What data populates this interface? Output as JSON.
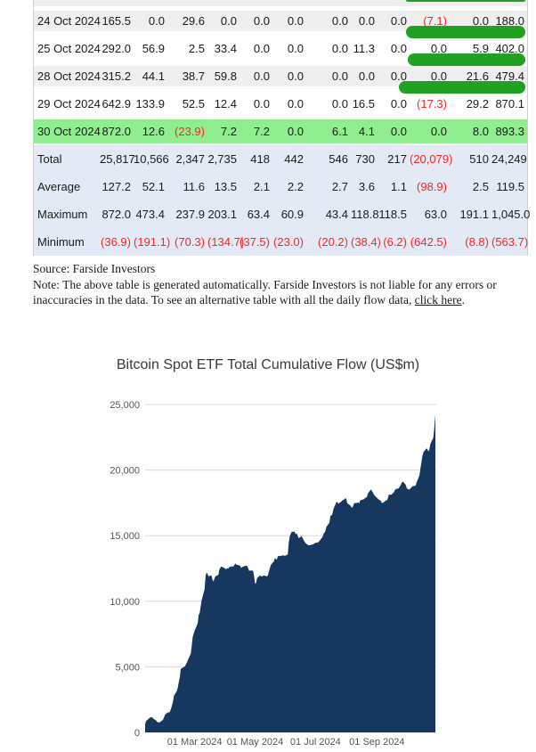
{
  "colors": {
    "stripe_bg": "#efefef",
    "highlight_green": "#90ee90",
    "summary_bg": "#e3eaf6",
    "bar_green": "#21a121",
    "negative_red": "#f92525",
    "area_navy": "#17375e",
    "grid_gray": "#d9d9d9"
  },
  "table": {
    "rows": [
      {
        "date": "24 Oct 2024",
        "shade": "gray",
        "bar": true,
        "values": [
          "165.5",
          "0.0",
          "29.6",
          "0.0",
          "0.0",
          "0.0",
          "0.0",
          "0.0",
          "0.0",
          "(7.1)",
          "0.0",
          "188.0"
        ]
      },
      {
        "date": "25 Oct 2024",
        "shade": "white",
        "bar": true,
        "values": [
          "292.0",
          "56.9",
          "2.5",
          "33.4",
          "0.0",
          "0.0",
          "0.0",
          "11.3",
          "0.0",
          "0.0",
          "5.9",
          "402.0"
        ]
      },
      {
        "date": "28 Oct 2024",
        "shade": "gray",
        "bar": true,
        "values": [
          "315.2",
          "44.1",
          "38.7",
          "59.8",
          "0.0",
          "0.0",
          "0.0",
          "0.0",
          "0.0",
          "0.0",
          "21.6",
          "479.4"
        ]
      },
      {
        "date": "29 Oct 2024",
        "shade": "white",
        "bar": false,
        "values": [
          "642.9",
          "133.9",
          "52.5",
          "12.4",
          "0.0",
          "0.0",
          "0.0",
          "16.5",
          "0.0",
          "(17.3)",
          "29.2",
          "870.1"
        ]
      },
      {
        "date": "30 Oct 2024",
        "shade": "green",
        "bar": false,
        "values": [
          "872.0",
          "12.6",
          "(23.9)",
          "7.2",
          "7.2",
          "0.0",
          "6.1",
          "4.1",
          "0.0",
          "0.0",
          "8.0",
          "893.3"
        ]
      }
    ],
    "summary": [
      {
        "label": "Total",
        "values": [
          "25,817",
          "10,566",
          "2,347",
          "2,735",
          "418",
          "442",
          "546",
          "730",
          "217",
          "(20,079)",
          "510",
          "24,249"
        ]
      },
      {
        "label": "Average",
        "values": [
          "127.2",
          "52.1",
          "11.6",
          "13.5",
          "2.1",
          "2.2",
          "2.7",
          "3.6",
          "1.1",
          "(98.9)",
          "2.5",
          "119.5"
        ]
      },
      {
        "label": "Maximum",
        "values": [
          "872.0",
          "473.4",
          "237.9",
          "203.1",
          "63.4",
          "60.9",
          "43.4",
          "118.8",
          "118.5",
          "63.0",
          "191.1",
          "1,045.0"
        ]
      },
      {
        "label": "Minimum",
        "values": [
          "(36.9)",
          "(191.1)",
          "(70.3)",
          "(134.7)",
          "(37.5)",
          "(23.0)",
          "(20.2)",
          "(38.4)",
          "(6.2)",
          "(642.5)",
          "(8.8)",
          "(563.7)"
        ]
      }
    ]
  },
  "notes": {
    "source": "Source: Farside Investors",
    "note_before_link": "Note: The above table is generated automatically. Farside Investors is not liable for any errors or inaccuracies in the data. To see an alternative table with all the daily flow data, ",
    "link_text": "click here",
    "note_after_link": "."
  },
  "chart_data": {
    "type": "area",
    "title": "Bitcoin Spot ETF Total Cumulative Flow (US$m)",
    "xlabel": "",
    "ylabel": "",
    "ylim": [
      0,
      25000
    ],
    "x_range": [
      "2024-01-11",
      "2024-10-30"
    ],
    "grid": true,
    "legend": "none",
    "yticks": [
      {
        "value": 0,
        "label": "0"
      },
      {
        "value": 5000,
        "label": "5,000"
      },
      {
        "value": 10000,
        "label": "10,000"
      },
      {
        "value": 15000,
        "label": "15,000"
      },
      {
        "value": 20000,
        "label": "20,000"
      },
      {
        "value": 25000,
        "label": "25,000"
      }
    ],
    "xticks": [
      {
        "date": "2024-03-01",
        "label": "01 Mar 2024"
      },
      {
        "date": "2024-05-01",
        "label": "01 May 2024"
      },
      {
        "date": "2024-07-01",
        "label": "01 Jul 2024"
      },
      {
        "date": "2024-09-01",
        "label": "01 Sep 2024"
      }
    ],
    "series_name": "cumulative_flow_usd_m",
    "points": [
      [
        "2024-01-11",
        630
      ],
      [
        "2024-01-12",
        860
      ],
      [
        "2024-01-16",
        1150
      ],
      [
        "2024-01-17",
        1140
      ],
      [
        "2024-01-18",
        1170
      ],
      [
        "2024-01-19",
        1060
      ],
      [
        "2024-01-22",
        920
      ],
      [
        "2024-01-23",
        800
      ],
      [
        "2024-01-24",
        780
      ],
      [
        "2024-01-25",
        745
      ],
      [
        "2024-01-26",
        790
      ],
      [
        "2024-01-29",
        950
      ],
      [
        "2024-01-30",
        1120
      ],
      [
        "2024-01-31",
        1350
      ],
      [
        "2024-02-01",
        1410
      ],
      [
        "2024-02-02",
        1490
      ],
      [
        "2024-02-05",
        1560
      ],
      [
        "2024-02-06",
        1770
      ],
      [
        "2024-02-07",
        2010
      ],
      [
        "2024-02-08",
        2310
      ],
      [
        "2024-02-09",
        2770
      ],
      [
        "2024-02-12",
        3180
      ],
      [
        "2024-02-13",
        3420
      ],
      [
        "2024-02-14",
        3830
      ],
      [
        "2024-02-15",
        4190
      ],
      [
        "2024-02-16",
        4850
      ],
      [
        "2024-02-20",
        5030
      ],
      [
        "2024-02-21",
        5140
      ],
      [
        "2024-02-22",
        5290
      ],
      [
        "2024-02-23",
        5480
      ],
      [
        "2024-02-26",
        6000
      ],
      [
        "2024-02-27",
        6580
      ],
      [
        "2024-02-28",
        7260
      ],
      [
        "2024-02-29",
        7530
      ],
      [
        "2024-03-01",
        7760
      ],
      [
        "2024-03-04",
        8310
      ],
      [
        "2024-03-05",
        8960
      ],
      [
        "2024-03-06",
        9080
      ],
      [
        "2024-03-07",
        9560
      ],
      [
        "2024-03-08",
        10060
      ],
      [
        "2024-03-11",
        10920
      ],
      [
        "2024-03-12",
        11940
      ],
      [
        "2024-03-13",
        12180
      ],
      [
        "2024-03-14",
        12080
      ],
      [
        "2024-03-15",
        11900
      ],
      [
        "2024-03-18",
        11970
      ],
      [
        "2024-03-19",
        11640
      ],
      [
        "2024-03-20",
        11510
      ],
      [
        "2024-03-21",
        11750
      ],
      [
        "2024-03-22",
        11900
      ],
      [
        "2024-03-25",
        12010
      ],
      [
        "2024-03-26",
        12430
      ],
      [
        "2024-03-27",
        12560
      ],
      [
        "2024-03-28",
        12650
      ],
      [
        "2024-04-01",
        12480
      ],
      [
        "2024-04-02",
        12440
      ],
      [
        "2024-04-03",
        12530
      ],
      [
        "2024-04-04",
        12500
      ],
      [
        "2024-04-05",
        12610
      ],
      [
        "2024-04-08",
        12670
      ],
      [
        "2024-04-09",
        12630
      ],
      [
        "2024-04-10",
        12760
      ],
      [
        "2024-04-11",
        12890
      ],
      [
        "2024-04-12",
        12800
      ],
      [
        "2024-04-15",
        12740
      ],
      [
        "2024-04-16",
        12700
      ],
      [
        "2024-04-17",
        12550
      ],
      [
        "2024-04-18",
        12590
      ],
      [
        "2024-04-19",
        12650
      ],
      [
        "2024-04-22",
        12710
      ],
      [
        "2024-04-23",
        12680
      ],
      [
        "2024-04-24",
        12520
      ],
      [
        "2024-04-25",
        12310
      ],
      [
        "2024-04-26",
        12350
      ],
      [
        "2024-04-29",
        12330
      ],
      [
        "2024-04-30",
        11900
      ],
      [
        "2024-05-01",
        11340
      ],
      [
        "2024-05-02",
        11380
      ],
      [
        "2024-05-03",
        11760
      ],
      [
        "2024-05-06",
        11980
      ],
      [
        "2024-05-07",
        11900
      ],
      [
        "2024-05-08",
        11910
      ],
      [
        "2024-05-09",
        11930
      ],
      [
        "2024-05-10",
        11960
      ],
      [
        "2024-05-13",
        11890
      ],
      [
        "2024-05-14",
        11990
      ],
      [
        "2024-05-15",
        12290
      ],
      [
        "2024-05-16",
        12550
      ],
      [
        "2024-05-17",
        12790
      ],
      [
        "2024-05-20",
        13030
      ],
      [
        "2024-05-21",
        13320
      ],
      [
        "2024-05-22",
        13200
      ],
      [
        "2024-05-23",
        13180
      ],
      [
        "2024-05-24",
        13430
      ],
      [
        "2024-05-28",
        13470
      ],
      [
        "2024-05-29",
        13510
      ],
      [
        "2024-05-30",
        13480
      ],
      [
        "2024-05-31",
        13460
      ],
      [
        "2024-06-03",
        13560
      ],
      [
        "2024-06-04",
        14440
      ],
      [
        "2024-06-05",
        14940
      ],
      [
        "2024-06-06",
        15160
      ],
      [
        "2024-06-07",
        15290
      ],
      [
        "2024-06-10",
        15300
      ],
      [
        "2024-06-11",
        15100
      ],
      [
        "2024-06-12",
        15200
      ],
      [
        "2024-06-13",
        15000
      ],
      [
        "2024-06-14",
        14810
      ],
      [
        "2024-06-17",
        14960
      ],
      [
        "2024-06-18",
        14810
      ],
      [
        "2024-06-19",
        14670
      ],
      [
        "2024-06-20",
        14530
      ],
      [
        "2024-06-21",
        14430
      ],
      [
        "2024-06-24",
        14260
      ],
      [
        "2024-06-25",
        14290
      ],
      [
        "2024-06-26",
        14270
      ],
      [
        "2024-06-27",
        14330
      ],
      [
        "2024-06-28",
        14320
      ],
      [
        "2024-07-01",
        14450
      ],
      [
        "2024-07-02",
        14480
      ],
      [
        "2024-07-03",
        14460
      ],
      [
        "2024-07-05",
        14600
      ],
      [
        "2024-07-08",
        14900
      ],
      [
        "2024-07-09",
        15120
      ],
      [
        "2024-07-10",
        15240
      ],
      [
        "2024-07-11",
        15360
      ],
      [
        "2024-07-12",
        15670
      ],
      [
        "2024-07-15",
        15970
      ],
      [
        "2024-07-16",
        16500
      ],
      [
        "2024-07-17",
        16550
      ],
      [
        "2024-07-18",
        16630
      ],
      [
        "2024-07-19",
        17010
      ],
      [
        "2024-07-22",
        17550
      ],
      [
        "2024-07-23",
        17580
      ],
      [
        "2024-07-24",
        17430
      ],
      [
        "2024-07-25",
        17490
      ],
      [
        "2024-07-26",
        17540
      ],
      [
        "2024-07-29",
        17730
      ],
      [
        "2024-07-30",
        17760
      ],
      [
        "2024-07-31",
        17860
      ],
      [
        "2024-08-01",
        17810
      ],
      [
        "2024-08-02",
        17470
      ],
      [
        "2024-08-05",
        17300
      ],
      [
        "2024-08-06",
        17200
      ],
      [
        "2024-08-07",
        17110
      ],
      [
        "2024-08-08",
        17290
      ],
      [
        "2024-08-09",
        17470
      ],
      [
        "2024-08-12",
        17500
      ],
      [
        "2024-08-13",
        17540
      ],
      [
        "2024-08-14",
        17450
      ],
      [
        "2024-08-15",
        17680
      ],
      [
        "2024-08-16",
        17720
      ],
      [
        "2024-08-19",
        17780
      ],
      [
        "2024-08-20",
        17870
      ],
      [
        "2024-08-21",
        17910
      ],
      [
        "2024-08-22",
        17970
      ],
      [
        "2024-08-23",
        18230
      ],
      [
        "2024-08-26",
        18530
      ],
      [
        "2024-08-27",
        18400
      ],
      [
        "2024-08-28",
        18290
      ],
      [
        "2024-08-29",
        18120
      ],
      [
        "2024-08-30",
        18030
      ],
      [
        "2024-09-03",
        17740
      ],
      [
        "2024-09-04",
        17700
      ],
      [
        "2024-09-05",
        17640
      ],
      [
        "2024-09-06",
        17470
      ],
      [
        "2024-09-09",
        17600
      ],
      [
        "2024-09-10",
        17720
      ],
      [
        "2024-09-11",
        17680
      ],
      [
        "2024-09-12",
        17860
      ],
      [
        "2024-09-13",
        18120
      ],
      [
        "2024-09-16",
        18130
      ],
      [
        "2024-09-17",
        18260
      ],
      [
        "2024-09-18",
        18300
      ],
      [
        "2024-09-19",
        18460
      ],
      [
        "2024-09-20",
        18550
      ],
      [
        "2024-09-23",
        18610
      ],
      [
        "2024-09-24",
        18740
      ],
      [
        "2024-09-25",
        18850
      ],
      [
        "2024-09-26",
        19030
      ],
      [
        "2024-09-27",
        19130
      ],
      [
        "2024-09-30",
        18890
      ],
      [
        "2024-10-01",
        18650
      ],
      [
        "2024-10-02",
        18560
      ],
      [
        "2024-10-03",
        18510
      ],
      [
        "2024-10-04",
        18540
      ],
      [
        "2024-10-07",
        18780
      ],
      [
        "2024-10-08",
        18770
      ],
      [
        "2024-10-09",
        18810
      ],
      [
        "2024-10-10",
        18810
      ],
      [
        "2024-10-11",
        19060
      ],
      [
        "2024-10-14",
        19610
      ],
      [
        "2024-10-15",
        20170
      ],
      [
        "2024-10-16",
        20630
      ],
      [
        "2024-10-17",
        21100
      ],
      [
        "2024-10-18",
        21370
      ],
      [
        "2024-10-21",
        21660
      ],
      [
        "2024-10-22",
        21580
      ],
      [
        "2024-10-23",
        21416
      ],
      [
        "2024-10-24",
        21604
      ],
      [
        "2024-10-25",
        22006
      ],
      [
        "2024-10-28",
        22486
      ],
      [
        "2024-10-29",
        23356
      ],
      [
        "2024-10-30",
        24249
      ]
    ]
  }
}
